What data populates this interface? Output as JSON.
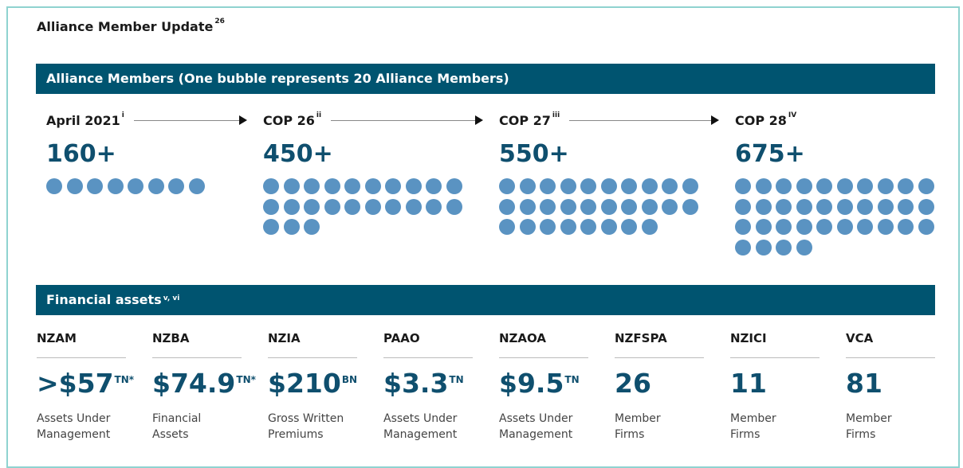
{
  "title": "Alliance Member Update",
  "title_note": "26",
  "members": {
    "heading": "Alliance Members (One bubble represents 20 Alliance Members)",
    "milestones": [
      {
        "label": "April 2021",
        "note": "i",
        "value": "160+",
        "bubbles": 8
      },
      {
        "label": "COP 26",
        "note": "ii",
        "value": "450+",
        "bubbles": 23
      },
      {
        "label": "COP 27",
        "note": "iii",
        "value": "550+",
        "bubbles": 28
      },
      {
        "label": "COP 28",
        "note": "IV",
        "value": "675+",
        "bubbles": 34
      }
    ]
  },
  "financial": {
    "heading": "Financial assets",
    "heading_note": "v, vi",
    "items": [
      {
        "name": "NZAM",
        "value": ">$57",
        "unit": "TN*",
        "desc": [
          "Assets Under",
          "Management"
        ]
      },
      {
        "name": "NZBA",
        "value": "$74.9",
        "unit": "TN*",
        "desc": [
          "Financial",
          "Assets"
        ]
      },
      {
        "name": "NZIA",
        "value": "$210",
        "unit": "BN",
        "desc": [
          "Gross Written",
          "Premiums"
        ]
      },
      {
        "name": "PAAO",
        "value": "$3.3",
        "unit": "TN",
        "desc": [
          "Assets Under",
          "Management"
        ]
      },
      {
        "name": "NZAOA",
        "value": "$9.5",
        "unit": "TN",
        "desc": [
          "Assets Under",
          "Management"
        ]
      },
      {
        "name": "NZFSPA",
        "value": "26",
        "unit": "",
        "desc": [
          "Member",
          "Firms"
        ]
      },
      {
        "name": "NZICI",
        "value": "11",
        "unit": "",
        "desc": [
          "Member",
          "Firms"
        ]
      },
      {
        "name": "VCA",
        "value": "81",
        "unit": "",
        "desc": [
          "Member",
          "Firms"
        ]
      }
    ]
  }
}
